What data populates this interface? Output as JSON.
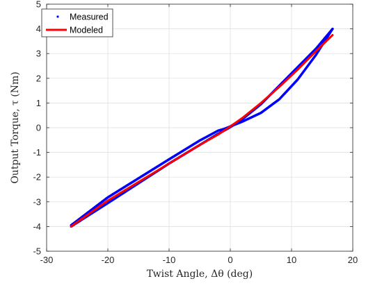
{
  "chart_data": {
    "type": "line",
    "xlabel": "Twist Angle, Δθ (deg)",
    "ylabel": "Output Torque, τ (Nm)",
    "xlim": [
      -30,
      20
    ],
    "ylim": [
      -5,
      5
    ],
    "xticks": [
      "-30",
      "-20",
      "-10",
      "0",
      "10",
      "20"
    ],
    "yticks": [
      "-5",
      "-4",
      "-3",
      "-2",
      "-1",
      "0",
      "1",
      "2",
      "3",
      "4",
      "5"
    ],
    "grid": true,
    "legend_position": "top-left",
    "series": [
      {
        "name": "Measured",
        "style": "points",
        "color": "#0000ff",
        "branches": [
          {
            "x": [
              -26,
              -20,
              -10,
              -5,
              -2,
              -0.5,
              0.5,
              2,
              5,
              8,
              11,
              14,
              16.7
            ],
            "y": [
              -4.0,
              -3.05,
              -1.45,
              -0.7,
              -0.25,
              -0.05,
              0.1,
              0.25,
              0.6,
              1.15,
              1.95,
              2.95,
              4.0
            ]
          },
          {
            "x": [
              16.7,
              14,
              11,
              8,
              5,
              2,
              1,
              0,
              -1,
              -2,
              -5,
              -10,
              -15,
              -20,
              -26
            ],
            "y": [
              4.0,
              3.2,
              2.45,
              1.7,
              0.95,
              0.35,
              0.2,
              0.05,
              -0.05,
              -0.12,
              -0.52,
              -1.28,
              -2.05,
              -2.82,
              -3.95
            ]
          }
        ]
      },
      {
        "name": "Modeled",
        "style": "line",
        "color": "#ff0000",
        "x": [
          -26,
          -20,
          -15,
          -10,
          -5,
          -2,
          0,
          2,
          5,
          8,
          11,
          14,
          16.7
        ],
        "y": [
          -4.0,
          -2.95,
          -2.2,
          -1.45,
          -0.7,
          -0.28,
          0.05,
          0.4,
          1.0,
          1.65,
          2.35,
          3.1,
          3.75
        ]
      }
    ]
  }
}
